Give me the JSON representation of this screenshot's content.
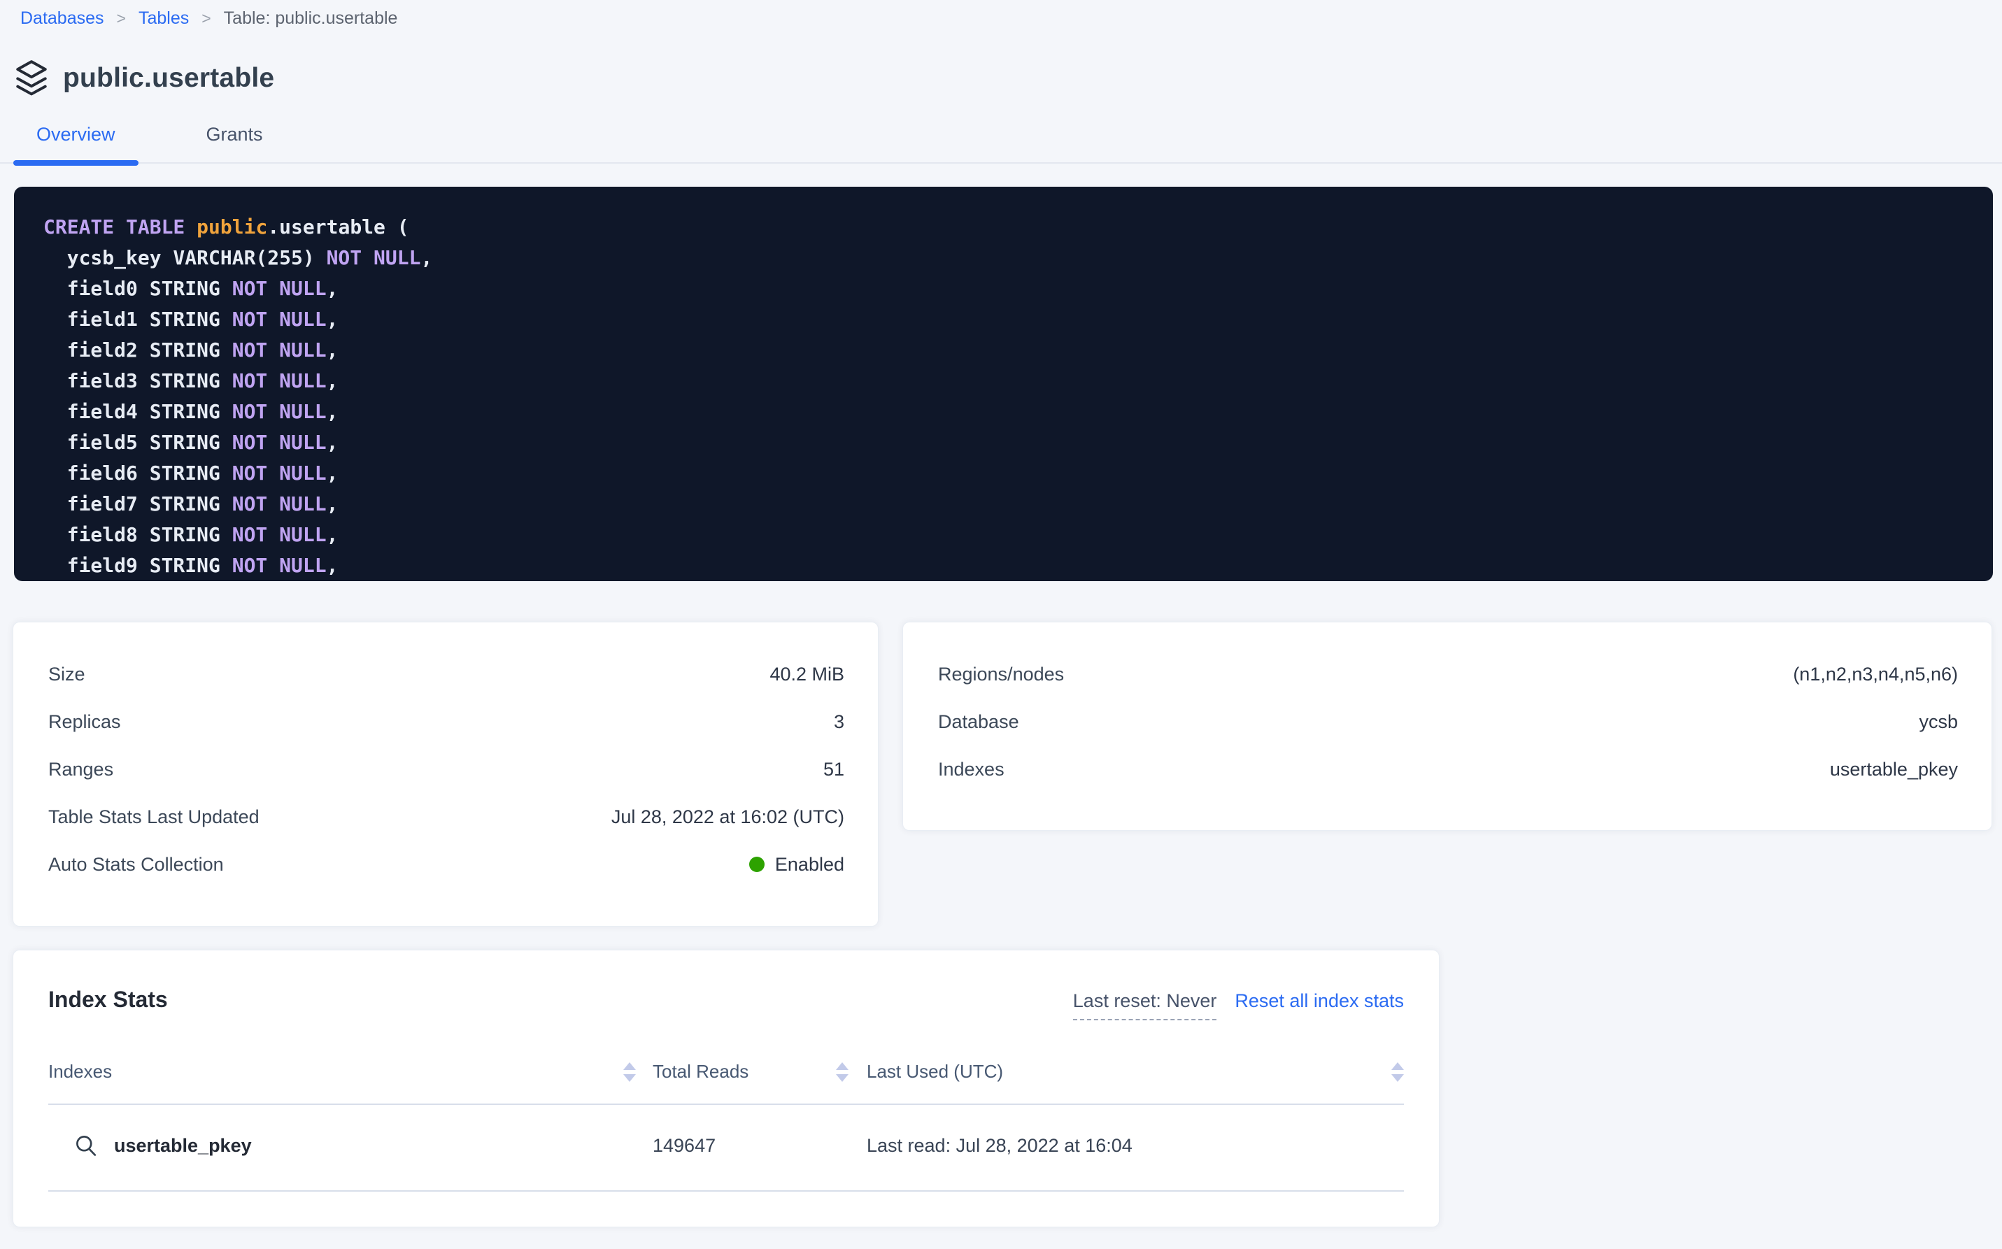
{
  "breadcrumb": {
    "links": [
      "Databases",
      "Tables"
    ],
    "current": "Table: public.usertable"
  },
  "page": {
    "title": "public.usertable"
  },
  "tabs": {
    "overview": "Overview",
    "grants": "Grants"
  },
  "sql": {
    "lines": [
      [
        {
          "t": "CREATE TABLE ",
          "c": "kw"
        },
        {
          "t": "public",
          "c": "name"
        },
        {
          "t": ".usertable (",
          "c": "plain"
        }
      ],
      [
        {
          "t": "  ycsb_key VARCHAR(255) ",
          "c": "plain"
        },
        {
          "t": "NOT NULL",
          "c": "kw"
        },
        {
          "t": ",",
          "c": "plain"
        }
      ],
      [
        {
          "t": "  field0 STRING ",
          "c": "plain"
        },
        {
          "t": "NOT NULL",
          "c": "kw"
        },
        {
          "t": ",",
          "c": "plain"
        }
      ],
      [
        {
          "t": "  field1 STRING ",
          "c": "plain"
        },
        {
          "t": "NOT NULL",
          "c": "kw"
        },
        {
          "t": ",",
          "c": "plain"
        }
      ],
      [
        {
          "t": "  field2 STRING ",
          "c": "plain"
        },
        {
          "t": "NOT NULL",
          "c": "kw"
        },
        {
          "t": ",",
          "c": "plain"
        }
      ],
      [
        {
          "t": "  field3 STRING ",
          "c": "plain"
        },
        {
          "t": "NOT NULL",
          "c": "kw"
        },
        {
          "t": ",",
          "c": "plain"
        }
      ],
      [
        {
          "t": "  field4 STRING ",
          "c": "plain"
        },
        {
          "t": "NOT NULL",
          "c": "kw"
        },
        {
          "t": ",",
          "c": "plain"
        }
      ],
      [
        {
          "t": "  field5 STRING ",
          "c": "plain"
        },
        {
          "t": "NOT NULL",
          "c": "kw"
        },
        {
          "t": ",",
          "c": "plain"
        }
      ],
      [
        {
          "t": "  field6 STRING ",
          "c": "plain"
        },
        {
          "t": "NOT NULL",
          "c": "kw"
        },
        {
          "t": ",",
          "c": "plain"
        }
      ],
      [
        {
          "t": "  field7 STRING ",
          "c": "plain"
        },
        {
          "t": "NOT NULL",
          "c": "kw"
        },
        {
          "t": ",",
          "c": "plain"
        }
      ],
      [
        {
          "t": "  field8 STRING ",
          "c": "plain"
        },
        {
          "t": "NOT NULL",
          "c": "kw"
        },
        {
          "t": ",",
          "c": "plain"
        }
      ],
      [
        {
          "t": "  field9 STRING ",
          "c": "plain"
        },
        {
          "t": "NOT NULL",
          "c": "kw"
        },
        {
          "t": ",",
          "c": "plain"
        }
      ]
    ]
  },
  "summary_card": {
    "rows": [
      {
        "label": "Size",
        "value": "40.2 MiB"
      },
      {
        "label": "Replicas",
        "value": "3"
      },
      {
        "label": "Ranges",
        "value": "51"
      },
      {
        "label": "Table Stats Last Updated",
        "value": "Jul 28, 2022 at 16:02 (UTC)"
      },
      {
        "label": "Auto Stats Collection",
        "value": "Enabled"
      }
    ]
  },
  "details_card": {
    "rows": [
      {
        "label": "Regions/nodes",
        "value": "(n1,n2,n3,n4,n5,n6)"
      },
      {
        "label": "Database",
        "value": "ycsb"
      },
      {
        "label": "Indexes",
        "value": "usertable_pkey"
      }
    ]
  },
  "index_stats": {
    "title": "Index Stats",
    "last_reset": "Last reset: Never",
    "reset_link": "Reset all index stats",
    "columns": [
      "Indexes",
      "Total Reads",
      "Last Used (UTC)"
    ],
    "rows": [
      {
        "name": "usertable_pkey",
        "total_reads": "149647",
        "last_used": "Last read: Jul 28, 2022 at 16:04"
      }
    ]
  },
  "colors": {
    "accent_blue": "#2b6bf2",
    "code_background": "#0f1729",
    "code_keyword": "#c0a4f2",
    "code_name": "#f0a33c",
    "status_green": "#2da200"
  }
}
